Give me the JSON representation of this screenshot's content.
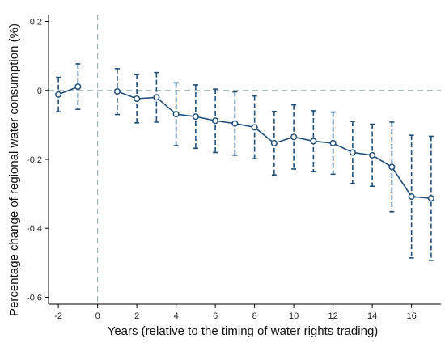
{
  "chart_data": {
    "type": "line",
    "title": "",
    "xlabel": "Years (relative to the timing of water rights trading)",
    "ylabel": "Percentage change of regional water consumption (%)",
    "xlim": [
      -2.5,
      17.5
    ],
    "ylim": [
      -0.62,
      0.22
    ],
    "x_ticks": [
      -2,
      0,
      2,
      4,
      6,
      8,
      10,
      12,
      14,
      16
    ],
    "x_tick_labels": [
      "-2",
      "0",
      "2",
      "4",
      "6",
      "8",
      "10",
      "12",
      "14",
      "16"
    ],
    "y_ticks": [
      -0.6,
      -0.4,
      -0.2,
      0,
      0.2
    ],
    "y_tick_labels": [
      "-0.6",
      "-0.4",
      "-0.2",
      "0",
      "0.2"
    ],
    "reference_lines": {
      "x": 0,
      "y": 0,
      "style": "dashed"
    },
    "grid": false,
    "marker": "hollow-circle",
    "error_bars": "dashed confidence intervals",
    "colors": {
      "series": "#1f4e79",
      "reference": "#8fa8a8"
    },
    "segments": [
      [
        {
          "x": -2,
          "y": -0.012,
          "lo": -0.062,
          "hi": 0.038
        },
        {
          "x": -1,
          "y": 0.011,
          "lo": -0.055,
          "hi": 0.077
        }
      ],
      [
        {
          "x": 1,
          "y": -0.003,
          "lo": -0.07,
          "hi": 0.063
        },
        {
          "x": 2,
          "y": -0.024,
          "lo": -0.094,
          "hi": 0.046
        },
        {
          "x": 3,
          "y": -0.02,
          "lo": -0.092,
          "hi": 0.052
        },
        {
          "x": 4,
          "y": -0.069,
          "lo": -0.16,
          "hi": 0.022
        },
        {
          "x": 5,
          "y": -0.076,
          "lo": -0.168,
          "hi": 0.016
        },
        {
          "x": 6,
          "y": -0.088,
          "lo": -0.18,
          "hi": 0.004
        },
        {
          "x": 7,
          "y": -0.096,
          "lo": -0.188,
          "hi": -0.004
        },
        {
          "x": 8,
          "y": -0.107,
          "lo": -0.198,
          "hi": -0.016
        },
        {
          "x": 9,
          "y": -0.153,
          "lo": -0.245,
          "hi": -0.061
        },
        {
          "x": 10,
          "y": -0.135,
          "lo": -0.228,
          "hi": -0.042
        },
        {
          "x": 11,
          "y": -0.147,
          "lo": -0.235,
          "hi": -0.059
        },
        {
          "x": 12,
          "y": -0.153,
          "lo": -0.243,
          "hi": -0.063
        },
        {
          "x": 13,
          "y": -0.18,
          "lo": -0.27,
          "hi": -0.09
        },
        {
          "x": 14,
          "y": -0.188,
          "lo": -0.278,
          "hi": -0.098
        },
        {
          "x": 15,
          "y": -0.222,
          "lo": -0.352,
          "hi": -0.092
        },
        {
          "x": 16,
          "y": -0.308,
          "lo": -0.486,
          "hi": -0.13
        },
        {
          "x": 17,
          "y": -0.313,
          "lo": -0.493,
          "hi": -0.133
        }
      ]
    ]
  }
}
